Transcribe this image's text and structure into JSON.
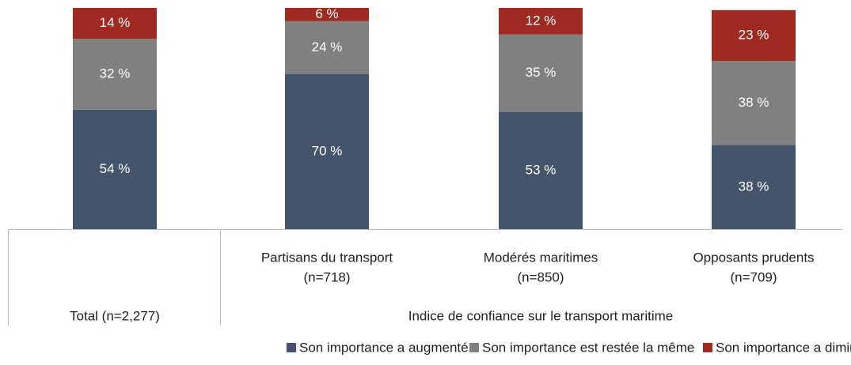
{
  "chart_data": {
    "type": "stacked_bar",
    "categories": [
      [
        "Total (n=2,277)"
      ],
      [
        "Partisans du transport",
        "(n=718)"
      ],
      [
        "Modérés maritimes",
        "(n=850)"
      ],
      [
        "Opposants prudents",
        "(n=709)"
      ]
    ],
    "group_label": "Indice de confiance sur le transport maritime",
    "ylim": [
      0,
      100
    ],
    "series": [
      {
        "name": "Son importance a augmenté",
        "color": "#44546a",
        "values": [
          54,
          70,
          53,
          38
        ],
        "value_labels": [
          "54 %",
          "70 %",
          "53 %",
          "38 %"
        ]
      },
      {
        "name": "Son importance est restée la même",
        "color": "#808080",
        "values": [
          32,
          24,
          35,
          38
        ],
        "value_labels": [
          "32 %",
          "24 %",
          "35 %",
          "38 %"
        ]
      },
      {
        "name": "Son importance a diminué",
        "color": "#9e2a22",
        "values": [
          14,
          6,
          12,
          23
        ],
        "value_labels": [
          "14 %",
          "6 %",
          "12 %",
          "23 %"
        ]
      }
    ],
    "legend": "bottom"
  }
}
